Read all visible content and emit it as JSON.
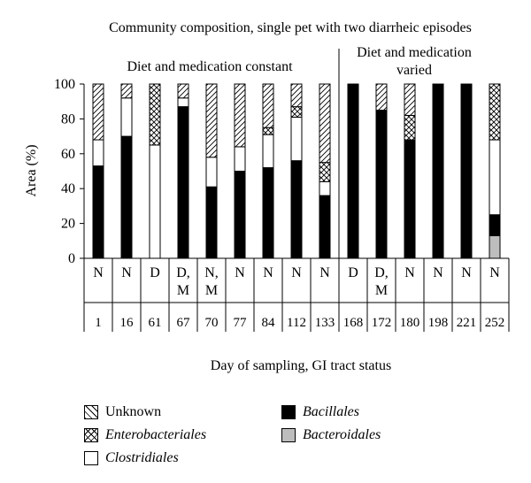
{
  "chart_data": {
    "type": "stacked-bar",
    "title": "Community composition, single pet with two diarrheic episodes",
    "ylabel": "Area (%)",
    "xlabel": "Day of sampling, GI tract status",
    "ylim": [
      0,
      100
    ],
    "yticks": [
      0,
      20,
      40,
      60,
      80,
      100
    ],
    "regions": [
      {
        "label": "Diet and medication constant",
        "from_day": "1",
        "to_day": "133"
      },
      {
        "label_lines": [
          "Diet and medication",
          "varied"
        ],
        "from_day": "168",
        "to_day": "252"
      }
    ],
    "days": [
      "1",
      "16",
      "61",
      "67",
      "70",
      "77",
      "84",
      "112",
      "133",
      "168",
      "172",
      "180",
      "198",
      "221",
      "252"
    ],
    "status": [
      [
        "N"
      ],
      [
        "N"
      ],
      [
        "D"
      ],
      [
        "D,",
        "M"
      ],
      [
        "N,",
        "M"
      ],
      [
        "N"
      ],
      [
        "N"
      ],
      [
        "N"
      ],
      [
        "N"
      ],
      [
        "D"
      ],
      [
        "D,",
        "M"
      ],
      [
        "N"
      ],
      [
        "N"
      ],
      [
        "N"
      ],
      [
        "N"
      ]
    ],
    "series": [
      {
        "name": "Bacteroidales",
        "pattern": "gray",
        "values": [
          0,
          0,
          0,
          0,
          0,
          0,
          0,
          0,
          0,
          0,
          0,
          0,
          0,
          0,
          13
        ]
      },
      {
        "name": "Bacillales",
        "pattern": "black",
        "values": [
          53,
          70,
          0,
          87,
          41,
          50,
          52,
          56,
          36,
          100,
          85,
          68,
          100,
          100,
          12
        ]
      },
      {
        "name": "Clostridiales",
        "pattern": "white",
        "values": [
          15,
          22,
          65,
          5,
          17,
          14,
          19,
          25,
          8,
          0,
          0,
          0,
          0,
          0,
          43
        ]
      },
      {
        "name": "Enterobacteriales",
        "pattern": "cross",
        "values": [
          0,
          0,
          35,
          0,
          0,
          0,
          4,
          6,
          11,
          0,
          0,
          14,
          0,
          0,
          32
        ]
      },
      {
        "name": "Unknown",
        "pattern": "diagonal",
        "values": [
          32,
          8,
          0,
          8,
          42,
          36,
          25,
          13,
          45,
          0,
          15,
          18,
          0,
          0,
          0
        ]
      }
    ],
    "legend": [
      {
        "name": "Unknown",
        "pattern": "diagonal",
        "italic": false
      },
      {
        "name": "Enterobacteriales",
        "pattern": "cross",
        "italic": true
      },
      {
        "name": "Clostridiales",
        "pattern": "white",
        "italic": true
      },
      {
        "name": "Bacillales",
        "pattern": "black",
        "italic": true
      },
      {
        "name": "Bacteroidales",
        "pattern": "gray",
        "italic": true
      }
    ],
    "grid": false,
    "legend_position": "bottom"
  }
}
